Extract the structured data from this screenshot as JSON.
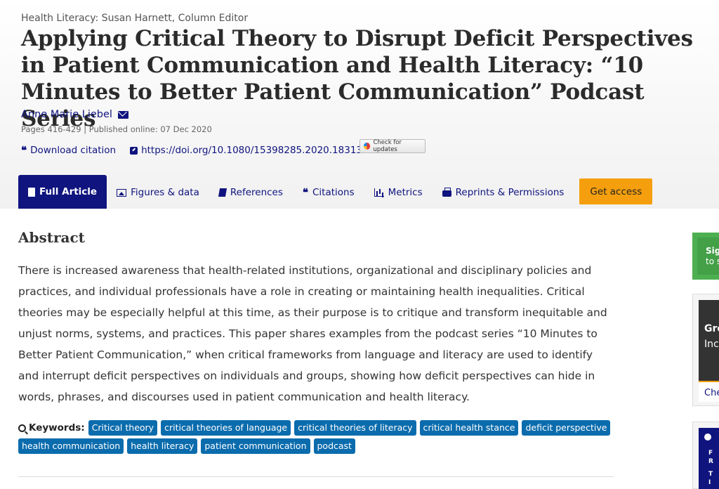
{
  "header": {
    "editor_line": "Health Literacy: Susan Harnett, Column Editor",
    "title": "Applying Critical Theory to Disrupt Deficit Perspectives in Patient Communication and Health Literacy: “10 Minutes to Better Patient Communication” Podcast Series",
    "author": "Anne Marie Liebel",
    "pages_line": "Pages 416-429 | Published online: 07 Dec 2020",
    "download_citation": "Download citation",
    "doi": "https://doi.org/10.1080/15398285.2020.1831354",
    "check_updates": "Check for updates"
  },
  "tabs": [
    {
      "label": "Full Article",
      "icon": "document-icon"
    },
    {
      "label": "Figures & data",
      "icon": "image-icon"
    },
    {
      "label": "References",
      "icon": "book-icon"
    },
    {
      "label": "Citations",
      "icon": "quote-icon"
    },
    {
      "label": "Metrics",
      "icon": "bar-chart-icon"
    },
    {
      "label": "Reprints & Permissions",
      "icon": "print-icon"
    }
  ],
  "get_access": "Get access",
  "abstract": {
    "heading": "Abstract",
    "text": "There is increased awareness that health-related institutions, organizational and disciplinary policies and practices, and individual professionals have a role in creating or maintaining health inequalities. Critical theories may be especially helpful at this time, as their purpose is to critique and transform inequitable and unjust norms, systems, and practices. This paper shares examples from the podcast series “10 Minutes to Better Patient Communication,” when critical frameworks from language and literacy are used to identify and interrupt deficit perspectives on individuals and groups, showing how deficit perspectives can hide in words, phrases, and discourses used in patient communication and health literacy."
  },
  "keywords": {
    "label": "Keywords:",
    "items": [
      "Critical theory",
      "critical theories of language",
      "critical theories of literacy",
      "critical health stance",
      "deficit perspective",
      "health communication",
      "health literacy",
      "patient communication",
      "podcast"
    ]
  },
  "sidebar": {
    "signin_line1": "Sig",
    "signin_line2": "to s",
    "box2_line1": "Gro",
    "box2_line2": "Inc",
    "box2_cta": "Che",
    "box3_line1": "F",
    "box3_line2": "R",
    "box3_line3": "T",
    "box3_line4": "I"
  },
  "colors": {
    "navy": "#10147e",
    "accent_orange": "#f59f0e",
    "keyword_blue": "#0b6cad",
    "green": "#4caf50"
  }
}
